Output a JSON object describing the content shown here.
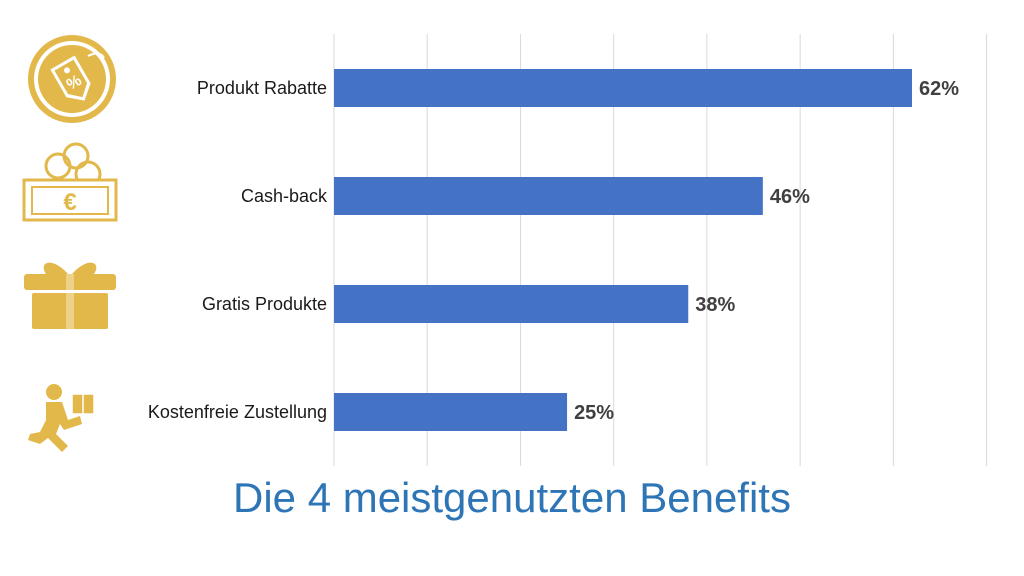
{
  "colors": {
    "bar": "#4472C4",
    "icon_gold": "#E2B84A",
    "icon_light": "#F2D48A",
    "grid": "#D9D9D9",
    "title": "#2E75B6"
  },
  "icons": [
    "percent-tag-icon",
    "cash-back-icon",
    "gift-icon",
    "delivery-person-icon"
  ],
  "chart_data": {
    "type": "bar",
    "orientation": "horizontal",
    "title": "Die 4 meistgenutzten Benefits",
    "categories": [
      "Produkt Rabatte",
      "Cash-back",
      "Gratis Produkte",
      "Kostenfreie Zustellung"
    ],
    "values": [
      62,
      46,
      38,
      25
    ],
    "value_labels": [
      "62%",
      "46%",
      "38%",
      "25%"
    ],
    "unit": "%",
    "xlim": [
      0,
      70
    ],
    "grid": true,
    "legend": "none"
  }
}
